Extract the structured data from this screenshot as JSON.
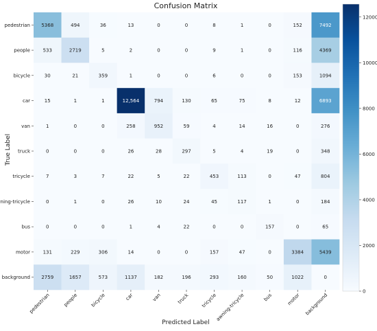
{
  "chart_data": {
    "type": "heatmap",
    "title": "Confusion Matrix",
    "xlabel": "Predicted Label",
    "ylabel": "True Label",
    "x_categories": [
      "pedestrian",
      "people",
      "bicycle",
      "car",
      "van",
      "truck",
      "tricycle",
      "awning-tricycle",
      "bus",
      "motor",
      "background"
    ],
    "y_categories": [
      "pedestrian",
      "people",
      "bicycle",
      "car",
      "van",
      "truck",
      "tricycle",
      "awning-tricycle",
      "bus",
      "motor",
      "background"
    ],
    "values": [
      [
        5368,
        494,
        36,
        13,
        0,
        0,
        8,
        1,
        0,
        152,
        7492
      ],
      [
        533,
        2719,
        5,
        2,
        0,
        0,
        9,
        1,
        0,
        116,
        4369
      ],
      [
        30,
        21,
        359,
        1,
        0,
        0,
        6,
        0,
        0,
        153,
        1094
      ],
      [
        15,
        1,
        1,
        12564,
        794,
        130,
        65,
        75,
        8,
        12,
        6893
      ],
      [
        1,
        0,
        0,
        258,
        952,
        59,
        4,
        14,
        16,
        0,
        276
      ],
      [
        0,
        0,
        0,
        26,
        28,
        297,
        5,
        4,
        19,
        0,
        348
      ],
      [
        7,
        3,
        7,
        22,
        5,
        22,
        453,
        113,
        0,
        47,
        804
      ],
      [
        0,
        1,
        0,
        26,
        10,
        24,
        45,
        117,
        1,
        0,
        184
      ],
      [
        0,
        0,
        0,
        1,
        4,
        22,
        0,
        0,
        157,
        0,
        65
      ],
      [
        131,
        229,
        306,
        14,
        0,
        0,
        157,
        47,
        0,
        3384,
        5439
      ],
      [
        2759,
        1657,
        573,
        1137,
        182,
        196,
        293,
        160,
        50,
        1022,
        0
      ]
    ],
    "value_labels": [
      [
        "5368",
        "494",
        "36",
        "13",
        "0",
        "0",
        "8",
        "1",
        "0",
        "152",
        "7492"
      ],
      [
        "533",
        "2719",
        "5",
        "2",
        "0",
        "0",
        "9",
        "1",
        "0",
        "116",
        "4369"
      ],
      [
        "30",
        "21",
        "359",
        "1",
        "0",
        "0",
        "6",
        "0",
        "0",
        "153",
        "1094"
      ],
      [
        "15",
        "1",
        "1",
        "12,564",
        "794",
        "130",
        "65",
        "75",
        "8",
        "12",
        "6893"
      ],
      [
        "1",
        "0",
        "0",
        "258",
        "952",
        "59",
        "4",
        "14",
        "16",
        "0",
        "276"
      ],
      [
        "0",
        "0",
        "0",
        "26",
        "28",
        "297",
        "5",
        "4",
        "19",
        "0",
        "348"
      ],
      [
        "7",
        "3",
        "7",
        "22",
        "5",
        "22",
        "453",
        "113",
        "0",
        "47",
        "804"
      ],
      [
        "0",
        "1",
        "0",
        "26",
        "10",
        "24",
        "45",
        "117",
        "1",
        "0",
        "184"
      ],
      [
        "0",
        "0",
        "0",
        "1",
        "4",
        "22",
        "0",
        "0",
        "157",
        "0",
        "65"
      ],
      [
        "131",
        "229",
        "306",
        "14",
        "0",
        "0",
        "157",
        "47",
        "0",
        "3384",
        "5439"
      ],
      [
        "2759",
        "1657",
        "573",
        "1137",
        "182",
        "196",
        "293",
        "160",
        "50",
        "1022",
        "0"
      ]
    ],
    "colormap": "Blues",
    "vmin": 0,
    "vmax": 12564,
    "colorbar_ticks": [
      0,
      2000,
      4000,
      6000,
      8000,
      10000,
      12000
    ],
    "grid": false,
    "colors": {
      "low": "#f7fbff",
      "high": "#08306b",
      "text_dark": "#222222",
      "text_light": "#ffffff"
    }
  }
}
